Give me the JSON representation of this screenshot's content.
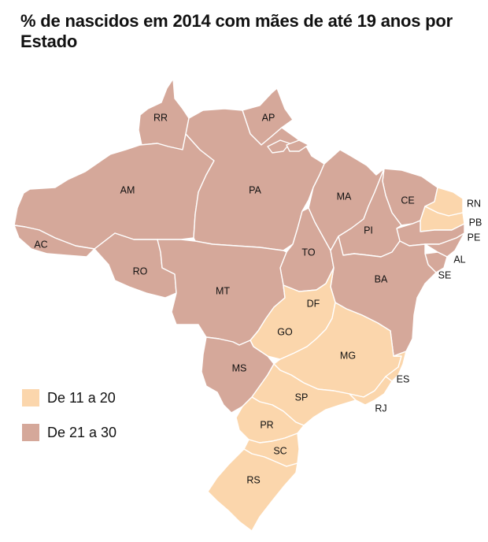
{
  "title": "% de nascidos em 2014 com mães de até 19 anos por Estado",
  "colors": {
    "low": "#fbd6ac",
    "high": "#d5a89a",
    "border": "#ffffff"
  },
  "legend": [
    {
      "label": "De 11 a 20",
      "color": "#fbd6ac"
    },
    {
      "label": "De 21 a 30",
      "color": "#d5a89a"
    }
  ],
  "states": [
    {
      "code": "RR",
      "category": "De 21 a 30"
    },
    {
      "code": "AP",
      "category": "De 21 a 30"
    },
    {
      "code": "AM",
      "category": "De 21 a 30"
    },
    {
      "code": "PA",
      "category": "De 21 a 30"
    },
    {
      "code": "MA",
      "category": "De 21 a 30"
    },
    {
      "code": "CE",
      "category": "De 21 a 30"
    },
    {
      "code": "RN",
      "category": "De 11 a 20"
    },
    {
      "code": "PB",
      "category": "De 11 a 20"
    },
    {
      "code": "PE",
      "category": "De 21 a 30"
    },
    {
      "code": "PI",
      "category": "De 21 a 30"
    },
    {
      "code": "AL",
      "category": "De 21 a 30"
    },
    {
      "code": "SE",
      "category": "De 21 a 30"
    },
    {
      "code": "AC",
      "category": "De 21 a 30"
    },
    {
      "code": "RO",
      "category": "De 21 a 30"
    },
    {
      "code": "TO",
      "category": "De 21 a 30"
    },
    {
      "code": "BA",
      "category": "De 21 a 30"
    },
    {
      "code": "MT",
      "category": "De 21 a 30"
    },
    {
      "code": "DF",
      "category": "De 11 a 20"
    },
    {
      "code": "GO",
      "category": "De 11 a 20"
    },
    {
      "code": "MG",
      "category": "De 11 a 20"
    },
    {
      "code": "MS",
      "category": "De 21 a 30"
    },
    {
      "code": "ES",
      "category": "De 11 a 20"
    },
    {
      "code": "SP",
      "category": "De 11 a 20"
    },
    {
      "code": "RJ",
      "category": "De 11 a 20"
    },
    {
      "code": "PR",
      "category": "De 11 a 20"
    },
    {
      "code": "SC",
      "category": "De 11 a 20"
    },
    {
      "code": "RS",
      "category": "De 11 a 20"
    }
  ]
}
